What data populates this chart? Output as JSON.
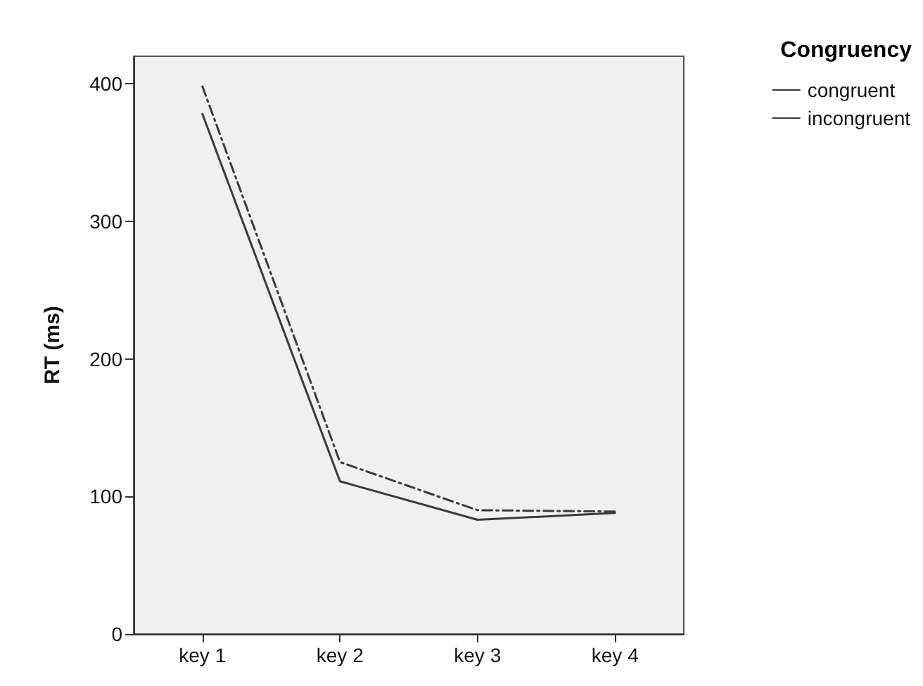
{
  "chart_data": {
    "type": "line",
    "ylabel": "RT (ms)",
    "legend_title": "Congruency",
    "categories": [
      "key 1",
      "key 2",
      "key 3",
      "key 4"
    ],
    "series": [
      {
        "name": "congruent",
        "color": "#3a3a3a",
        "values": [
          378,
          111,
          83,
          88
        ],
        "line_style": "solid"
      },
      {
        "name": "incongruent",
        "color": "#3a3a3a",
        "values": [
          398,
          125,
          90,
          89
        ],
        "line_style": "dashed"
      }
    ],
    "ylim": [
      0,
      420
    ],
    "yticks": [
      0,
      100,
      200,
      300,
      400
    ],
    "grid": false,
    "legend": "top right",
    "marker": "none"
  }
}
